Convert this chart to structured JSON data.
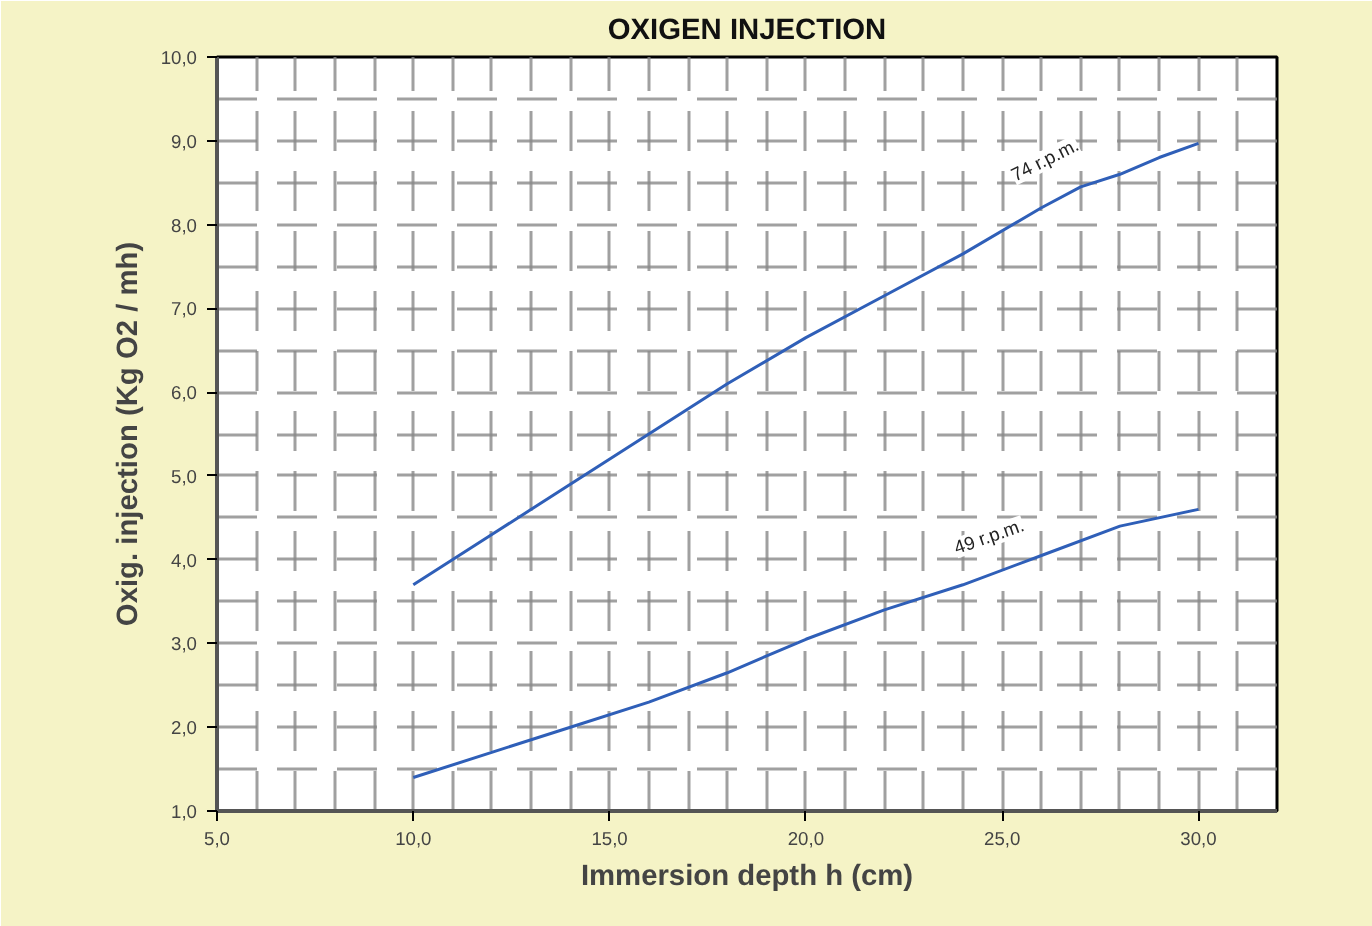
{
  "chart_data": {
    "type": "line",
    "title": "OXIGEN INJECTION",
    "xlabel": "Immersion depth h (cm)",
    "ylabel": "Oxig. injection (Kg O2 / mh)",
    "x": [
      10,
      12,
      14,
      16,
      18,
      20,
      22,
      24,
      26,
      27,
      28,
      29,
      30
    ],
    "series": [
      {
        "name": "74 r.p.m.",
        "color": "#2f5fb8",
        "values": [
          3.7,
          4.3,
          4.9,
          5.5,
          6.1,
          6.65,
          7.15,
          7.65,
          8.2,
          8.45,
          8.6,
          8.8,
          8.97
        ]
      },
      {
        "name": "49 r.p.m.",
        "color": "#2f5fb8",
        "x": [
          10,
          14,
          16,
          18,
          20,
          22,
          24,
          26,
          28,
          30
        ],
        "values": [
          1.4,
          2.0,
          2.3,
          2.65,
          3.05,
          3.4,
          3.7,
          4.05,
          4.4,
          4.6
        ]
      }
    ],
    "xlim": [
      5,
      32
    ],
    "ylim": [
      1,
      10
    ],
    "xticks": [
      {
        "value": 5,
        "label": "5,0"
      },
      {
        "value": 10,
        "label": "10,0"
      },
      {
        "value": 15,
        "label": "15,0"
      },
      {
        "value": 20,
        "label": "20,0"
      },
      {
        "value": 25,
        "label": "25,0"
      },
      {
        "value": 30,
        "label": "30,0"
      }
    ],
    "yticks": [
      {
        "value": 1,
        "label": "1,0"
      },
      {
        "value": 2,
        "label": "2,0"
      },
      {
        "value": 3,
        "label": "3,0"
      },
      {
        "value": 4,
        "label": "4,0"
      },
      {
        "value": 5,
        "label": "5,0"
      },
      {
        "value": 6,
        "label": "6,0"
      },
      {
        "value": 7,
        "label": "7,0"
      },
      {
        "value": 8,
        "label": "8,0"
      },
      {
        "value": 9,
        "label": "9,0"
      },
      {
        "value": 10,
        "label": "10,0"
      }
    ],
    "grid": true,
    "marker": "none",
    "line_style": "solid"
  }
}
